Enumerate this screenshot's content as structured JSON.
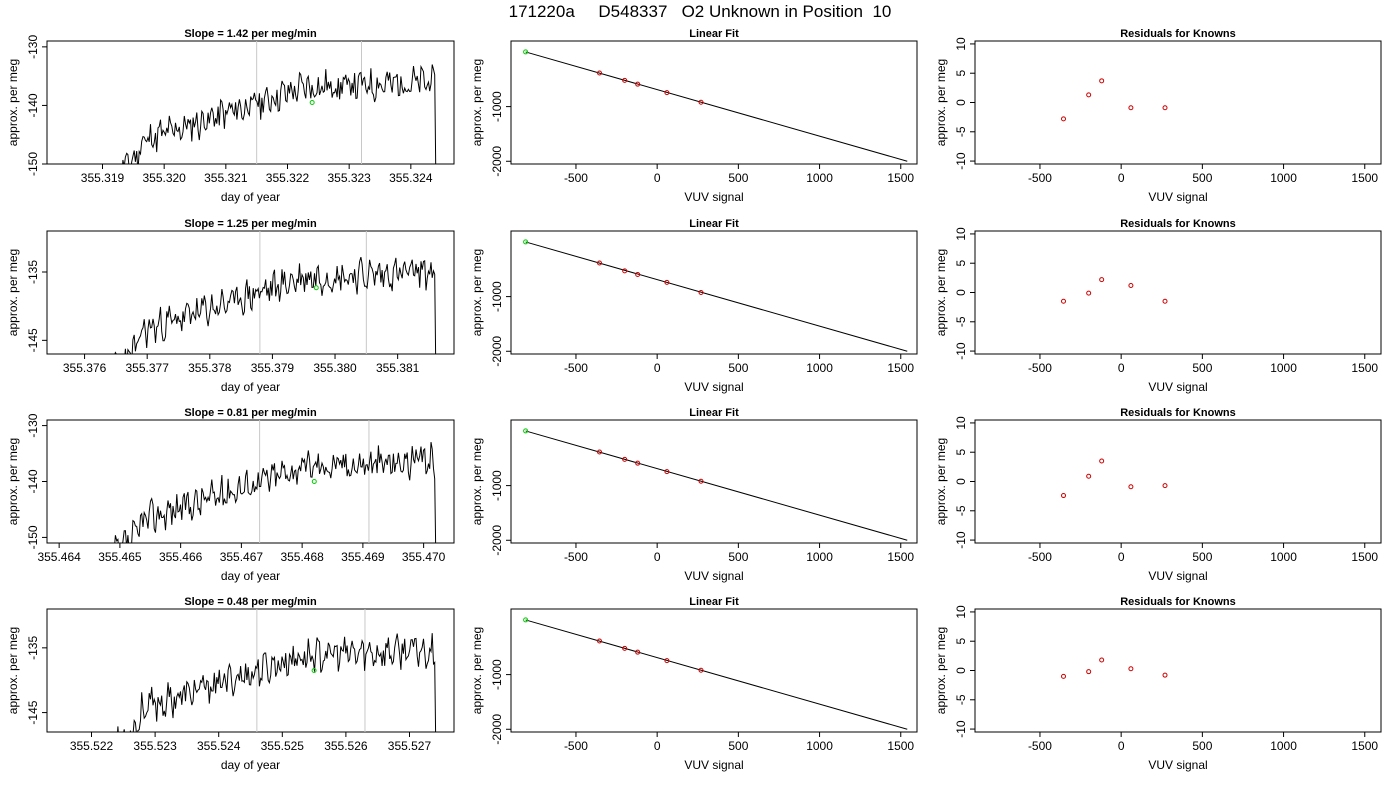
{
  "header": {
    "title": "171220a     D548337   O2 Unknown in Position  10"
  },
  "colors": {
    "trace": "#000000",
    "marker": "#00cc00",
    "knowns": "#cc0000",
    "window_line": "#c8c8c8",
    "fit_line": "#000000"
  },
  "chart_data": [
    {
      "type": "line",
      "row": 1,
      "title": "Slope =  1.42  per meg/min",
      "xlabel": "day of year",
      "ylabel": "approx. per meg",
      "xlim": [
        355.3181,
        355.3247
      ],
      "ylim": [
        -150,
        -129
      ],
      "xticks": [
        355.319,
        355.32,
        355.321,
        355.322,
        355.323,
        355.324
      ],
      "xtick_labels": [
        "355.319",
        "355.320",
        "355.321",
        "355.322",
        "355.323",
        "355.324"
      ],
      "yticks": [
        -150,
        -140,
        -130
      ],
      "ytick_labels": [
        "-150",
        "-140",
        "-130"
      ],
      "window_lines": [
        355.3215,
        355.3232
      ],
      "marker": {
        "x": 355.3224,
        "y": -139.5
      },
      "trace_seed": 11
    },
    {
      "type": "scatter",
      "row": 1,
      "title": "Linear Fit",
      "xlabel": "VUV signal",
      "ylabel": "approx. per meg",
      "xlim": [
        -900,
        1600
      ],
      "ylim": [
        -2050,
        200
      ],
      "xticks": [
        -500,
        0,
        500,
        1000,
        1500
      ],
      "xtick_labels": [
        "-500",
        "0",
        "500",
        "1000",
        "1500"
      ],
      "yticks": [
        -2000,
        -1000
      ],
      "ytick_labels": [
        "-2000",
        "-1000"
      ],
      "fit_line": [
        [
          -810,
          0
        ],
        [
          1540,
          -2000
        ]
      ],
      "unknown_point": {
        "x": -810,
        "y": 0
      },
      "known_points": {
        "x": [
          -355,
          -200,
          -120,
          60,
          270
        ],
        "y": [
          -385,
          -520,
          -590,
          -745,
          -920
        ]
      }
    },
    {
      "type": "scatter",
      "row": 1,
      "title": "Residuals for Knowns",
      "xlabel": "VUV signal",
      "ylabel": "approx. per meg",
      "xlim": [
        -900,
        1600
      ],
      "ylim": [
        -10.5,
        10.5
      ],
      "xticks": [
        -500,
        0,
        500,
        1000,
        1500
      ],
      "xtick_labels": [
        "-500",
        "0",
        "500",
        "1000",
        "1500"
      ],
      "yticks": [
        -10,
        -5,
        0,
        5,
        10
      ],
      "ytick_labels": [
        "-10",
        "-5",
        "0",
        "5",
        "10"
      ],
      "known_points": {
        "x": [
          -355,
          -200,
          -120,
          60,
          270
        ],
        "y": [
          -2.8,
          1.3,
          3.7,
          -0.9,
          -0.9
        ]
      }
    },
    {
      "type": "line",
      "row": 2,
      "title": "Slope =  1.25  per meg/min",
      "xlabel": "day of year",
      "ylabel": "approx. per meg",
      "xlim": [
        355.3754,
        355.3819
      ],
      "ylim": [
        -147,
        -129
      ],
      "xticks": [
        355.376,
        355.377,
        355.378,
        355.379,
        355.38,
        355.381
      ],
      "xtick_labels": [
        "355.376",
        "355.377",
        "355.378",
        "355.379",
        "355.380",
        "355.381"
      ],
      "yticks": [
        -145,
        -135
      ],
      "ytick_labels": [
        "-145",
        "-135"
      ],
      "window_lines": [
        355.3788,
        355.3805
      ],
      "marker": {
        "x": 355.3797,
        "y": -137.3
      },
      "trace_seed": 23
    },
    {
      "type": "scatter",
      "row": 2,
      "title": "Linear Fit",
      "xlabel": "VUV signal",
      "ylabel": "approx. per meg",
      "xlim": [
        -900,
        1600
      ],
      "ylim": [
        -2050,
        200
      ],
      "xticks": [
        -500,
        0,
        500,
        1000,
        1500
      ],
      "xtick_labels": [
        "-500",
        "0",
        "500",
        "1000",
        "1500"
      ],
      "yticks": [
        -2000,
        -1000
      ],
      "ytick_labels": [
        "-2000",
        "-1000"
      ],
      "fit_line": [
        [
          -810,
          0
        ],
        [
          1540,
          -2000
        ]
      ],
      "unknown_point": {
        "x": -810,
        "y": 0
      },
      "known_points": {
        "x": [
          -355,
          -200,
          -120,
          60,
          270
        ],
        "y": [
          -385,
          -530,
          -595,
          -740,
          -925
        ]
      }
    },
    {
      "type": "scatter",
      "row": 2,
      "title": "Residuals for Knowns",
      "xlabel": "VUV signal",
      "ylabel": "approx. per meg",
      "xlim": [
        -900,
        1600
      ],
      "ylim": [
        -10.5,
        10.5
      ],
      "xticks": [
        -500,
        0,
        500,
        1000,
        1500
      ],
      "xtick_labels": [
        "-500",
        "0",
        "500",
        "1000",
        "1500"
      ],
      "yticks": [
        -10,
        -5,
        0,
        5,
        10
      ],
      "ytick_labels": [
        "-10",
        "-5",
        "0",
        "5",
        "10"
      ],
      "known_points": {
        "x": [
          -355,
          -200,
          -120,
          60,
          270
        ],
        "y": [
          -1.5,
          -0.1,
          2.2,
          1.2,
          -1.5
        ]
      }
    },
    {
      "type": "line",
      "row": 3,
      "title": "Slope =  0.81  per meg/min",
      "xlabel": "day of year",
      "ylabel": "approx. per meg",
      "xlim": [
        355.4638,
        355.4705
      ],
      "ylim": [
        -151,
        -129
      ],
      "xticks": [
        355.464,
        355.465,
        355.466,
        355.467,
        355.468,
        355.469,
        355.47
      ],
      "xtick_labels": [
        "355.464",
        "355.465",
        "355.466",
        "355.467",
        "355.468",
        "355.469",
        "355.470"
      ],
      "yticks": [
        -150,
        -140,
        -130
      ],
      "ytick_labels": [
        "-150",
        "-140",
        "-130"
      ],
      "window_lines": [
        355.4673,
        355.4691
      ],
      "marker": {
        "x": 355.4682,
        "y": -140.0
      },
      "trace_seed": 37
    },
    {
      "type": "scatter",
      "row": 3,
      "title": "Linear Fit",
      "xlabel": "VUV signal",
      "ylabel": "approx. per meg",
      "xlim": [
        -900,
        1600
      ],
      "ylim": [
        -2050,
        200
      ],
      "xticks": [
        -500,
        0,
        500,
        1000,
        1500
      ],
      "xtick_labels": [
        "-500",
        "0",
        "500",
        "1000",
        "1500"
      ],
      "yticks": [
        -2000,
        -1000
      ],
      "ytick_labels": [
        "-2000",
        "-1000"
      ],
      "fit_line": [
        [
          -810,
          0
        ],
        [
          1540,
          -2000
        ]
      ],
      "unknown_point": {
        "x": -810,
        "y": 0
      },
      "known_points": {
        "x": [
          -355,
          -200,
          -120,
          60,
          270
        ],
        "y": [
          -385,
          -520,
          -590,
          -745,
          -920
        ]
      }
    },
    {
      "type": "scatter",
      "row": 3,
      "title": "Residuals for Knowns",
      "xlabel": "VUV signal",
      "ylabel": "approx. per meg",
      "xlim": [
        -900,
        1600
      ],
      "ylim": [
        -10.5,
        10.5
      ],
      "xticks": [
        -500,
        0,
        500,
        1000,
        1500
      ],
      "xtick_labels": [
        "-500",
        "0",
        "500",
        "1000",
        "1500"
      ],
      "yticks": [
        -10,
        -5,
        0,
        5,
        10
      ],
      "ytick_labels": [
        "-10",
        "-5",
        "0",
        "5",
        "10"
      ],
      "known_points": {
        "x": [
          -355,
          -200,
          -120,
          60,
          270
        ],
        "y": [
          -2.4,
          0.9,
          3.5,
          -0.9,
          -0.7
        ]
      }
    },
    {
      "type": "line",
      "row": 4,
      "title": "Slope =  0.48  per meg/min",
      "xlabel": "day of year",
      "ylabel": "approx. per meg",
      "xlim": [
        355.5213,
        355.5277
      ],
      "ylim": [
        -148,
        -129
      ],
      "xticks": [
        355.522,
        355.523,
        355.524,
        355.525,
        355.526,
        355.527
      ],
      "xtick_labels": [
        "355.522",
        "355.523",
        "355.524",
        "355.525",
        "355.526",
        "355.527"
      ],
      "yticks": [
        -145,
        -135
      ],
      "ytick_labels": [
        "-145",
        "-135"
      ],
      "window_lines": [
        355.5246,
        355.5263
      ],
      "marker": {
        "x": 355.5255,
        "y": -138.5
      },
      "trace_seed": 53
    },
    {
      "type": "scatter",
      "row": 4,
      "title": "Linear Fit",
      "xlabel": "VUV signal",
      "ylabel": "approx. per meg",
      "xlim": [
        -900,
        1600
      ],
      "ylim": [
        -2050,
        200
      ],
      "xticks": [
        -500,
        0,
        500,
        1000,
        1500
      ],
      "xtick_labels": [
        "-500",
        "0",
        "500",
        "1000",
        "1500"
      ],
      "yticks": [
        -2000,
        -1000
      ],
      "ytick_labels": [
        "-2000",
        "-1000"
      ],
      "fit_line": [
        [
          -810,
          0
        ],
        [
          1540,
          -2000
        ]
      ],
      "unknown_point": {
        "x": -810,
        "y": 0
      },
      "known_points": {
        "x": [
          -355,
          -200,
          -120,
          60,
          270
        ],
        "y": [
          -385,
          -520,
          -590,
          -745,
          -920
        ]
      }
    },
    {
      "type": "scatter",
      "row": 4,
      "title": "Residuals for Knowns",
      "xlabel": "VUV signal",
      "ylabel": "approx. per meg",
      "xlim": [
        -900,
        1600
      ],
      "ylim": [
        -10.5,
        10.5
      ],
      "xticks": [
        -500,
        0,
        500,
        1000,
        1500
      ],
      "xtick_labels": [
        "-500",
        "0",
        "500",
        "1000",
        "1500"
      ],
      "yticks": [
        -10,
        -5,
        0,
        5,
        10
      ],
      "ytick_labels": [
        "-10",
        "-5",
        "0",
        "5",
        "10"
      ],
      "known_points": {
        "x": [
          -355,
          -200,
          -120,
          60,
          270
        ],
        "y": [
          -1.0,
          -0.2,
          1.8,
          0.3,
          -0.8
        ]
      }
    }
  ]
}
